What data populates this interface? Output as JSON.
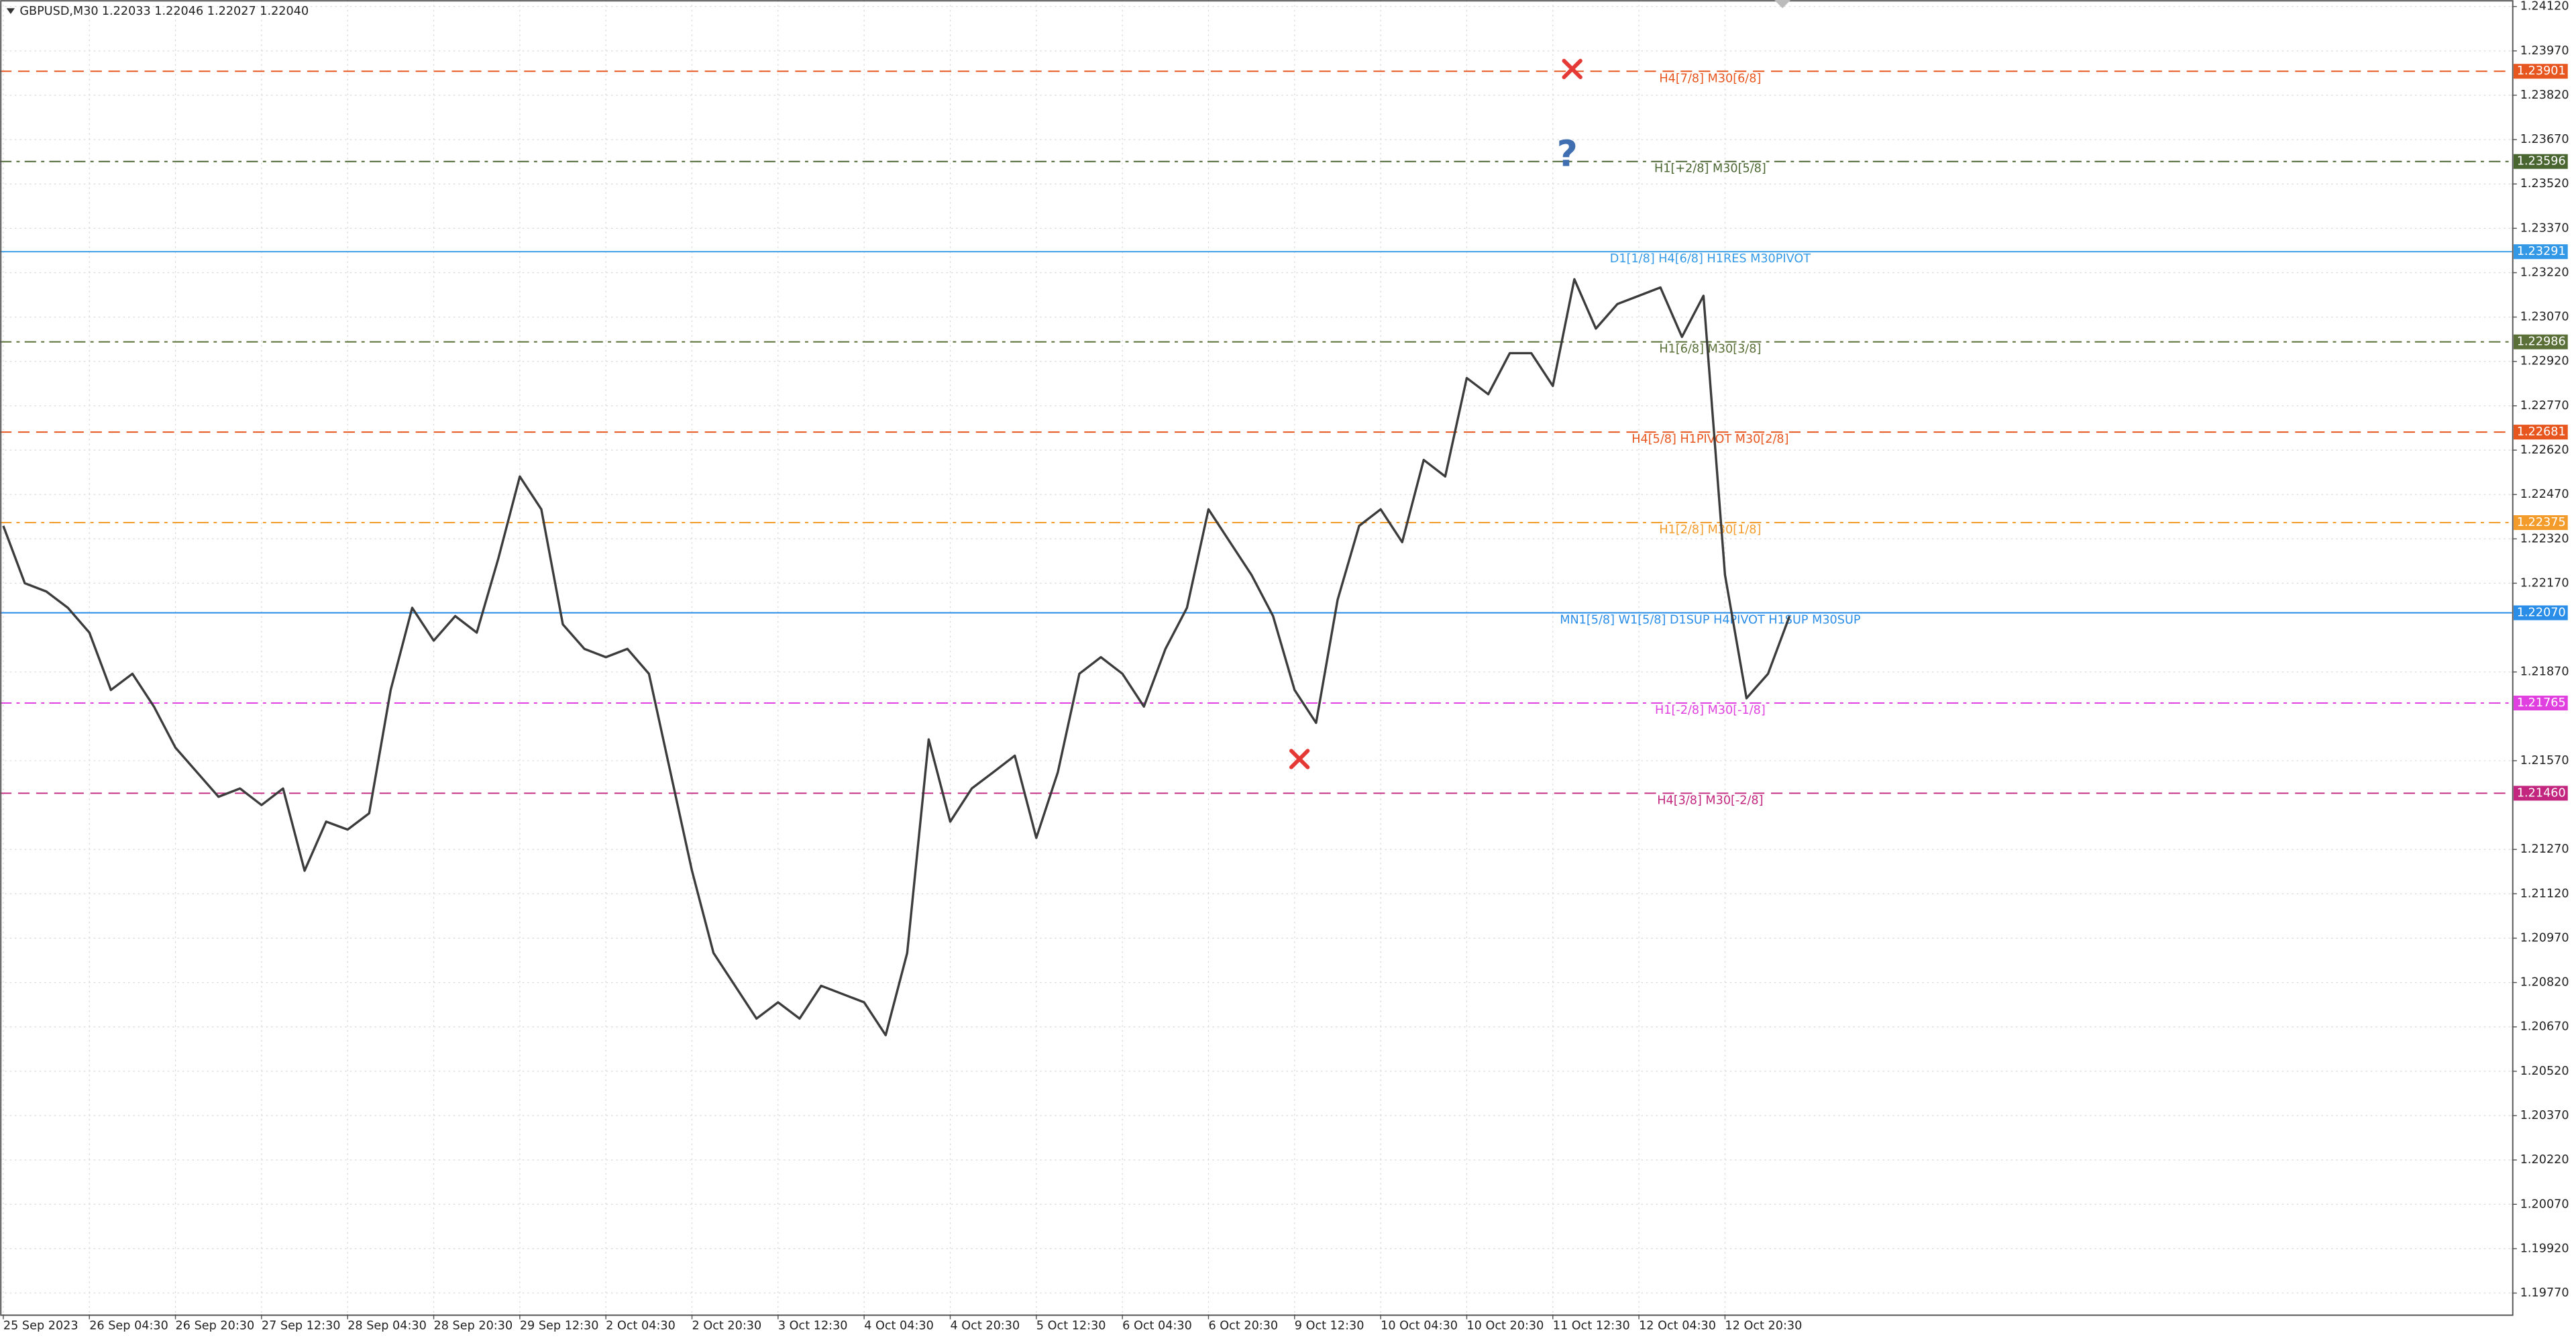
{
  "chart_data": {
    "type": "line",
    "title": "GBPUSD,M30",
    "subtitle": "1.22033 1.22046 1.22027 1.22040",
    "categories": [
      "25 Sep 2023",
      null,
      null,
      null,
      "26 Sep 04:30",
      null,
      null,
      null,
      "26 Sep 20:30",
      null,
      null,
      null,
      "27 Sep 12:30",
      null,
      null,
      null,
      "28 Sep 04:30",
      null,
      null,
      null,
      "28 Sep 20:30",
      null,
      null,
      null,
      "29 Sep 12:30",
      null,
      null,
      null,
      "2 Oct 04:30",
      null,
      null,
      null,
      "2 Oct 20:30",
      null,
      null,
      null,
      "3 Oct 12:30",
      null,
      null,
      null,
      "4 Oct 04:30",
      null,
      null,
      null,
      "4 Oct 20:30",
      null,
      null,
      null,
      "5 Oct 12:30",
      null,
      null,
      null,
      "6 Oct 04:30",
      null,
      null,
      null,
      "6 Oct 20:30",
      null,
      null,
      null,
      "9 Oct 12:30",
      null,
      null,
      null,
      "10 Oct 04:30",
      null,
      null,
      null,
      "10 Oct 20:30",
      null,
      null,
      null,
      "11 Oct 12:30",
      null,
      null,
      null,
      "12 Oct 04:30",
      null,
      null,
      null,
      "12 Oct 20:30",
      null,
      null,
      null
    ],
    "values": [
      1.22364,
      1.2217,
      1.22142,
      1.22087,
      1.22003,
      1.21809,
      1.21864,
      1.21753,
      1.21614,
      1.21531,
      1.21448,
      1.21476,
      1.2142,
      1.21476,
      1.21198,
      1.21364,
      1.21337,
      1.21392,
      1.21809,
      1.22087,
      1.21976,
      1.22059,
      1.22003,
      1.22253,
      1.22531,
      1.2242,
      1.22031,
      1.21948,
      1.2192,
      1.21948,
      1.21864,
      1.21531,
      1.21198,
      1.2092,
      1.20809,
      1.20698,
      1.20753,
      1.20698,
      1.20809,
      1.20781,
      1.20753,
      1.20642,
      1.2092,
      1.21642,
      1.21364,
      1.21476,
      1.21531,
      1.21587,
      1.21309,
      1.21531,
      1.21864,
      1.2192,
      1.21864,
      1.21753,
      1.21948,
      1.22087,
      1.2242,
      1.22309,
      1.22198,
      1.22059,
      1.21809,
      1.21698,
      1.22114,
      1.22364,
      1.2242,
      1.22309,
      1.22587,
      1.22531,
      1.22864,
      1.22809,
      1.22948,
      1.22948,
      1.22837,
      1.23198,
      1.23031,
      1.23114,
      1.23142,
      1.2317,
      1.23003,
      1.23142,
      1.22198,
      1.21781,
      1.21864,
      1.22059
    ],
    "color": "#3c3c3c",
    "ylim": [
      1.19698,
      1.24142
    ],
    "yticks": [
      {
        "value": 1.1977,
        "label": "1.19770"
      },
      {
        "value": 1.1992,
        "label": "1.19920"
      },
      {
        "value": 1.2007,
        "label": "1.20070"
      },
      {
        "value": 1.2022,
        "label": "1.20220"
      },
      {
        "value": 1.2037,
        "label": "1.20370"
      },
      {
        "value": 1.2052,
        "label": "1.20520"
      },
      {
        "value": 1.2067,
        "label": "1.20670"
      },
      {
        "value": 1.2082,
        "label": "1.20820"
      },
      {
        "value": 1.2097,
        "label": "1.20970"
      },
      {
        "value": 1.2112,
        "label": "1.21120"
      },
      {
        "value": 1.2127,
        "label": "1.21270"
      },
      {
        "value": 1.2157,
        "label": "1.21570"
      },
      {
        "value": 1.2187,
        "label": "1.21870"
      },
      {
        "value": 1.2217,
        "label": "1.22170"
      },
      {
        "value": 1.2232,
        "label": "1.22320"
      },
      {
        "value": 1.2247,
        "label": "1.22470"
      },
      {
        "value": 1.2262,
        "label": "1.22620"
      },
      {
        "value": 1.2277,
        "label": "1.22770"
      },
      {
        "value": 1.2292,
        "label": "1.22920"
      },
      {
        "value": 1.2307,
        "label": "1.23070"
      },
      {
        "value": 1.2322,
        "label": "1.23220"
      },
      {
        "value": 1.2337,
        "label": "1.23370"
      },
      {
        "value": 1.2352,
        "label": "1.23520"
      },
      {
        "value": 1.2367,
        "label": "1.23670"
      },
      {
        "value": 1.2382,
        "label": "1.23820"
      },
      {
        "value": 1.2397,
        "label": "1.23970"
      },
      {
        "value": 1.2412,
        "label": "1.24120"
      }
    ],
    "grid": true,
    "levels": [
      {
        "price": 1.23901,
        "label": "H4[7/8] M30[6/8]",
        "color": "#e8561f",
        "style": "dashed"
      },
      {
        "price": 1.23596,
        "label": "H1[+2/8] M30[5/8]",
        "color": "#4a6630",
        "style": "dashdot"
      },
      {
        "price": 1.23291,
        "label": "D1[1/8] H4[6/8] H1RES M30PIVOT",
        "color": "#3399e6",
        "style": "solid"
      },
      {
        "price": 1.22986,
        "label": "H1[6/8] M30[3/8]",
        "color": "#5a7038",
        "style": "dashdot"
      },
      {
        "price": 1.22681,
        "label": "H4[5/8] H1PIVOT M30[2/8]",
        "color": "#e8561f",
        "style": "dashed"
      },
      {
        "price": 1.22375,
        "label": "H1[2/8] M30[1/8]",
        "color": "#f39c2b",
        "style": "dashdot"
      },
      {
        "price": 1.2207,
        "price_label": "1.22070",
        "label": "MN1[5/8] W1[5/8] D1SUP H4PIVOT H1SUP M30SUP",
        "color": "#2a8ee8",
        "style": "solid"
      },
      {
        "price": 1.21765,
        "label": "H1[-2/8] M30[-1/8]",
        "color": "#e040e0",
        "style": "dashdot"
      },
      {
        "price": 1.2146,
        "price_label": "1.21460",
        "label": "H4[3/8] M30[-2/8]",
        "color": "#c2267e",
        "style": "dashed"
      }
    ]
  }
}
